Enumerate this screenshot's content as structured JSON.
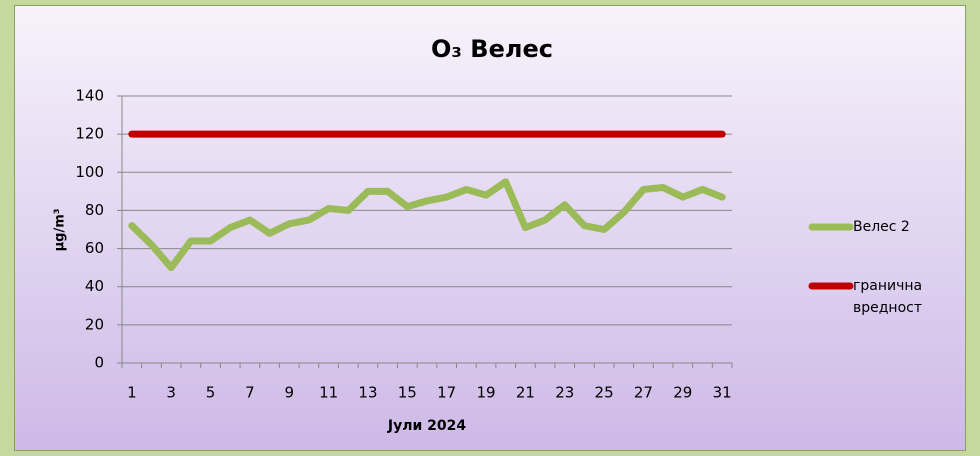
{
  "chart_data": {
    "type": "line",
    "title": "O₃ Велес",
    "y_label": "µg/m³",
    "x_label": "Јули 2024",
    "categories": [
      1,
      null,
      3,
      null,
      5,
      null,
      7,
      null,
      9,
      null,
      11,
      null,
      13,
      null,
      15,
      null,
      17,
      null,
      19,
      null,
      21,
      null,
      23,
      null,
      25,
      null,
      27,
      null,
      29,
      null,
      31
    ],
    "series": [
      {
        "name": "Велес 2",
        "color": "#9bbb59",
        "values": [
          72,
          62,
          50,
          64,
          64,
          71,
          75,
          68,
          73,
          75,
          81,
          80,
          90,
          90,
          82,
          85,
          87,
          91,
          88,
          95,
          71,
          75,
          83,
          72,
          70,
          79,
          91,
          92,
          87,
          91,
          87
        ]
      },
      {
        "name": "гранична вредност",
        "color": "#c00000",
        "values": [
          120,
          120,
          120,
          120,
          120,
          120,
          120,
          120,
          120,
          120,
          120,
          120,
          120,
          120,
          120,
          120,
          120,
          120,
          120,
          120,
          120,
          120,
          120,
          120,
          120,
          120,
          120,
          120,
          120,
          120,
          120
        ]
      }
    ],
    "ylim": [
      0,
      140
    ],
    "yticks": [
      0,
      20,
      40,
      60,
      80,
      100,
      120,
      140
    ],
    "grid": true,
    "legend": "right"
  }
}
